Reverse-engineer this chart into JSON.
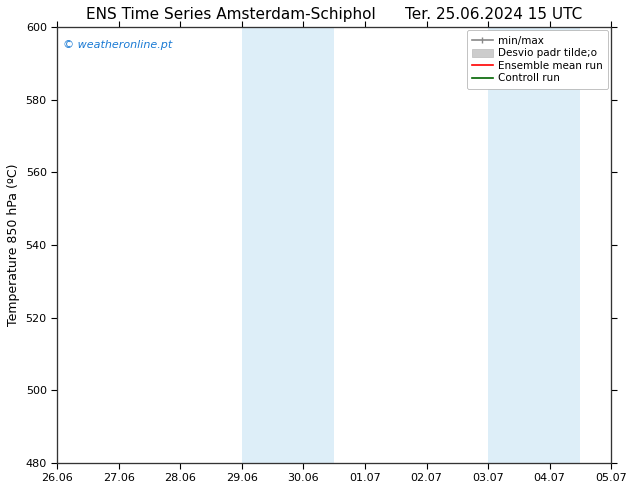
{
  "title_left": "ENS Time Series Amsterdam-Schiphol",
  "title_right": "Ter. 25.06.2024 15 UTC",
  "ylabel": "Temperature 850 hPa (ºC)",
  "watermark": "© weatheronline.pt",
  "watermark_color": "#1a7ad4",
  "xlim_start": 0,
  "xlim_end": 9,
  "ylim_bottom": 480,
  "ylim_top": 600,
  "yticks": [
    480,
    500,
    520,
    540,
    560,
    580,
    600
  ],
  "xtick_labels": [
    "26.06",
    "27.06",
    "28.06",
    "29.06",
    "30.06",
    "01.07",
    "02.07",
    "03.07",
    "04.07",
    "05.07"
  ],
  "shaded_bands": [
    {
      "x_start": 3.0,
      "x_end": 4.5,
      "color": "#ddeef8"
    },
    {
      "x_start": 7.0,
      "x_end": 8.5,
      "color": "#ddeef8"
    }
  ],
  "background_color": "#ffffff",
  "plot_bg_color": "#ffffff",
  "border_color": "#333333",
  "tick_label_fontsize": 8,
  "axis_label_fontsize": 9,
  "title_fontsize": 11,
  "legend_fontsize": 7.5,
  "watermark_fontsize": 8
}
